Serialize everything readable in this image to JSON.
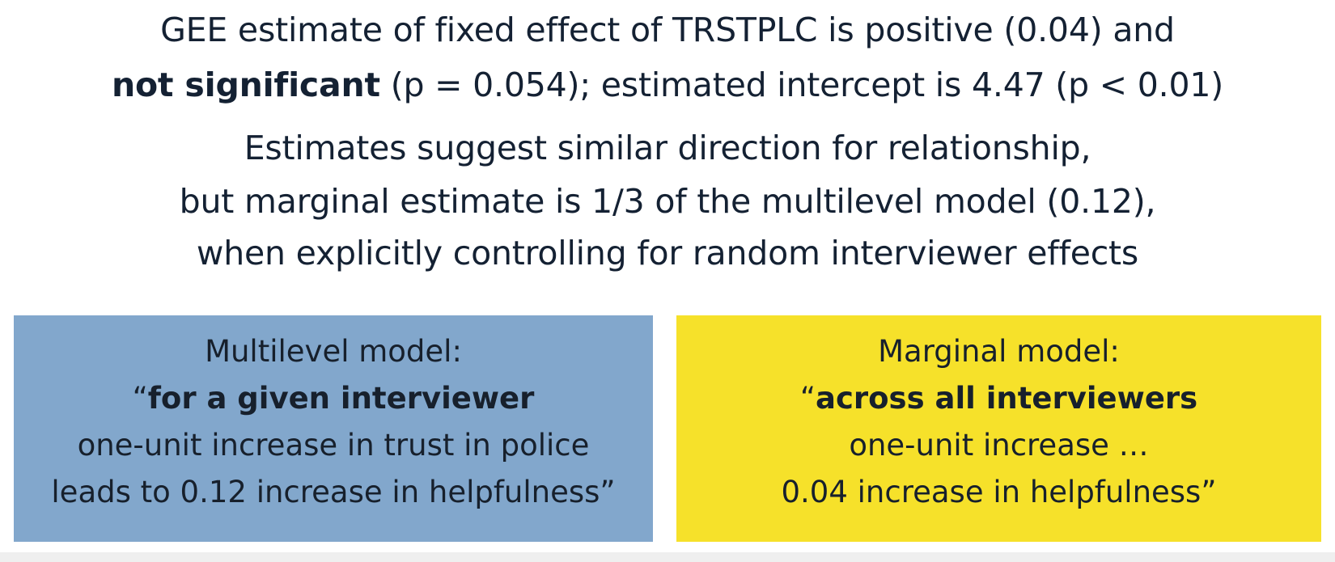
{
  "headline": {
    "line1": "GEE estimate of fixed effect of TRSTPLC is positive (0.04) and",
    "line2_bold": "not significant",
    "line2_rest": " (p = 0.054); estimated intercept is 4.47 (p < 0.01)",
    "line3": "Estimates suggest similar direction for relationship,",
    "line4": "but marginal estimate is 1/3 of the multilevel model (0.12),",
    "line5": "when explicitly controlling for random interviewer effects"
  },
  "multilevel": {
    "title": "Multilevel model:",
    "quote_open": "“",
    "emphasis": "for a given interviewer",
    "line3": "one-unit increase in trust in police",
    "line4": "leads to 0.12 increase in helpfulness”",
    "color": "#82a7cc"
  },
  "marginal": {
    "title": "Marginal model:",
    "quote_open": "“",
    "emphasis": "across all interviewers",
    "line3": "one-unit increase …",
    "line4": "0.04 increase in helpfulness”",
    "color": "#f6e12a"
  }
}
